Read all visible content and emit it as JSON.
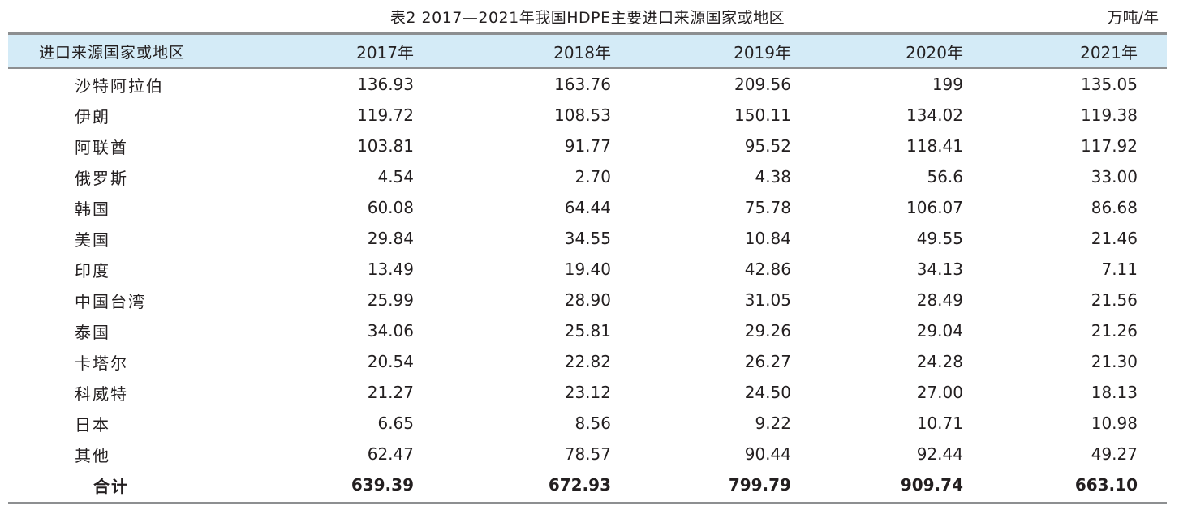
{
  "caption": "表2  2017—2021年我国HDPE主要进口来源国家或地区",
  "unit": "万吨/年",
  "columns": [
    "进口来源国家或地区",
    "2017年",
    "2018年",
    "2019年",
    "2020年",
    "2021年"
  ],
  "rows": [
    {
      "name": "沙特阿拉伯",
      "values": [
        "136.93",
        "163.76",
        "209.56",
        "199",
        "135.05"
      ]
    },
    {
      "name": "伊朗",
      "values": [
        "119.72",
        "108.53",
        "150.11",
        "134.02",
        "119.38"
      ]
    },
    {
      "name": "阿联酋",
      "values": [
        "103.81",
        "91.77",
        "95.52",
        "118.41",
        "117.92"
      ]
    },
    {
      "name": "俄罗斯",
      "values": [
        "4.54",
        "2.70",
        "4.38",
        "56.6",
        "33.00"
      ]
    },
    {
      "name": "韩国",
      "values": [
        "60.08",
        "64.44",
        "75.78",
        "106.07",
        "86.68"
      ]
    },
    {
      "name": "美国",
      "values": [
        "29.84",
        "34.55",
        "10.84",
        "49.55",
        "21.46"
      ]
    },
    {
      "name": "印度",
      "values": [
        "13.49",
        "19.40",
        "42.86",
        "34.13",
        "7.11"
      ]
    },
    {
      "name": "中国台湾",
      "values": [
        "25.99",
        "28.90",
        "31.05",
        "28.49",
        "21.56"
      ]
    },
    {
      "name": "泰国",
      "values": [
        "34.06",
        "25.81",
        "29.26",
        "29.04",
        "21.26"
      ]
    },
    {
      "name": "卡塔尔",
      "values": [
        "20.54",
        "22.82",
        "26.27",
        "24.28",
        "21.30"
      ]
    },
    {
      "name": "科威特",
      "values": [
        "21.27",
        "23.12",
        "24.50",
        "27.00",
        "18.13"
      ]
    },
    {
      "name": "日本",
      "values": [
        "6.65",
        "8.56",
        "9.22",
        "10.71",
        "10.98"
      ]
    },
    {
      "name": "其他",
      "values": [
        "62.47",
        "78.57",
        "90.44",
        "92.44",
        "49.27"
      ]
    }
  ],
  "total": {
    "name": "合计",
    "values": [
      "639.39",
      "672.93",
      "799.79",
      "909.74",
      "663.10"
    ]
  }
}
